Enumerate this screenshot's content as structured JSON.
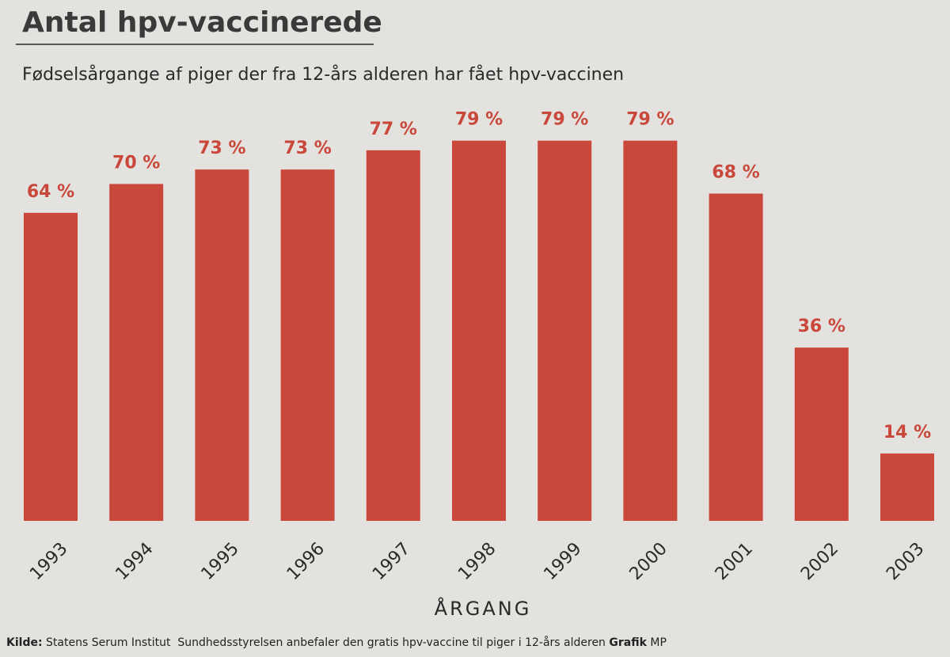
{
  "chart_data": {
    "type": "bar",
    "title": "Antal hpv-vaccinerede",
    "subtitle": "Fødselsårgange af piger der fra 12-års alderen har fået hpv-vaccinen",
    "x_label": "ÅRGANG",
    "categories": [
      "1993",
      "1994",
      "1995",
      "1996",
      "1997",
      "1998",
      "1999",
      "2000",
      "2001",
      "2002",
      "2003"
    ],
    "values": [
      64,
      70,
      73,
      73,
      77,
      79,
      79,
      79,
      68,
      36,
      14
    ],
    "value_labels": [
      "64 %",
      "70 %",
      "73 %",
      "73 %",
      "77 %",
      "79 %",
      "79 %",
      "79 %",
      "68 %",
      "36 %",
      "14 %"
    ],
    "color": "#c9473b",
    "source": {
      "label": "Kilde:",
      "text": "Statens Serum Institut  Sundhedsstyrelsen anbefaler den gratis hpv-vaccine til piger i 12-års alderen",
      "credit_label": "Grafik",
      "credit": "MP"
    }
  }
}
